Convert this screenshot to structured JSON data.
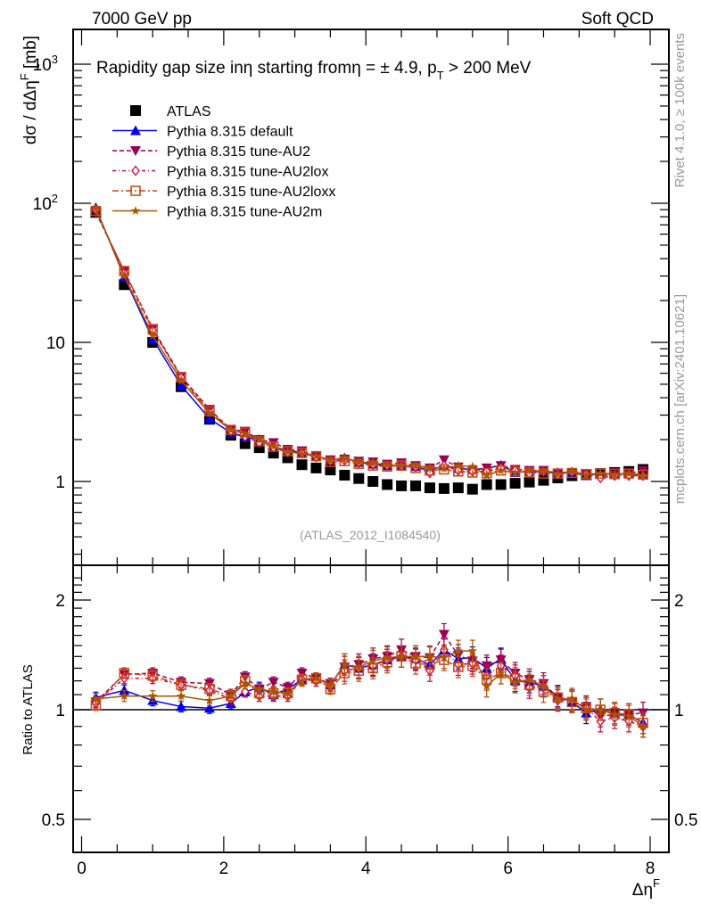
{
  "header": {
    "left_label": "7000 GeV pp",
    "right_label": "Soft QCD"
  },
  "side_labels": {
    "rivet": "Rivet 4.1.0, ≥ 100k events",
    "source": "mcplots.cern.ch [arXiv:2401.10621]"
  },
  "chart_data": [
    {
      "type": "line",
      "panel": "main",
      "title": "Rapidity gap size inη starting fromη = ± 4.9, p_T > 200 MeV",
      "title_parts": {
        "main": "Rapidity gap size inη starting fromη = ± 4.9, p",
        "sub": "T",
        "tail": " > 200 MeV"
      },
      "xlabel": "Δη^F",
      "ylabel": "dσ / dΔη^F [mb]",
      "ylabel_parts": {
        "pre": "dσ / dΔη",
        "sup": "F",
        "post": " [mb]"
      },
      "xlim": [
        -0.15,
        8.25
      ],
      "ylim": [
        0.27,
        1700
      ],
      "yscale": "log",
      "ytick_labels": [
        {
          "value": 1000,
          "base": "10",
          "exp": "3"
        },
        {
          "value": 100,
          "base": "10",
          "exp": "2"
        },
        {
          "value": 10,
          "base": "10",
          "exp": ""
        },
        {
          "value": 1,
          "base": "1",
          "exp": ""
        }
      ],
      "xtick_labels": [
        "0",
        "2",
        "4",
        "6",
        "8"
      ],
      "legend_position": "top-left",
      "watermark": "(ATLAS_2012_I1084540)",
      "x": [
        0.2,
        0.6,
        1.0,
        1.4,
        1.8,
        2.1,
        2.3,
        2.5,
        2.7,
        2.9,
        3.1,
        3.3,
        3.5,
        3.7,
        3.9,
        4.1,
        4.3,
        4.5,
        4.7,
        4.9,
        5.1,
        5.3,
        5.5,
        5.7,
        5.9,
        6.1,
        6.3,
        6.5,
        6.7,
        6.9,
        7.1,
        7.3,
        7.5,
        7.7,
        7.9
      ],
      "series": [
        {
          "name": "ATLAS",
          "color": "#000000",
          "marker": "square",
          "line": "none",
          "values": [
            86,
            26,
            10,
            4.8,
            2.8,
            2.15,
            1.87,
            1.75,
            1.6,
            1.48,
            1.32,
            1.25,
            1.21,
            1.11,
            1.05,
            1.0,
            0.95,
            0.93,
            0.93,
            0.9,
            0.89,
            0.9,
            0.88,
            0.95,
            0.95,
            0.97,
            0.99,
            1.02,
            1.06,
            1.1,
            1.12,
            1.14,
            1.16,
            1.18,
            1.22
          ]
        },
        {
          "name": "Pythia 8.315 default",
          "color": "#0000ee",
          "marker": "triangle-up",
          "line": "solid",
          "values": [
            93,
            29.5,
            10.6,
            4.9,
            2.83,
            2.24,
            2.09,
            2.01,
            1.76,
            1.69,
            1.6,
            1.53,
            1.42,
            1.48,
            1.37,
            1.33,
            1.3,
            1.3,
            1.28,
            1.2,
            1.3,
            1.24,
            1.22,
            1.24,
            1.31,
            1.16,
            1.18,
            1.18,
            1.16,
            1.16,
            1.1,
            1.14,
            1.12,
            1.14,
            1.12
          ]
        },
        {
          "name": "Pythia 8.315 tune-AU2",
          "color": "#990055",
          "marker": "triangle-down",
          "line": "dashed",
          "values": [
            86,
            32.5,
            12.6,
            5.7,
            3.3,
            2.37,
            2.3,
            2.0,
            1.9,
            1.7,
            1.66,
            1.52,
            1.43,
            1.45,
            1.4,
            1.38,
            1.33,
            1.36,
            1.3,
            1.25,
            1.43,
            1.27,
            1.2,
            1.25,
            1.3,
            1.22,
            1.2,
            1.2,
            1.14,
            1.15,
            1.14,
            1.1,
            1.12,
            1.14,
            1.2
          ]
        },
        {
          "name": "Pythia 8.315 tune-AU2lox",
          "color": "#cc0044",
          "marker": "diamond-open",
          "line": "dashdot",
          "values": [
            90,
            31.5,
            12.2,
            5.6,
            3.15,
            2.3,
            2.1,
            1.9,
            1.75,
            1.62,
            1.6,
            1.5,
            1.4,
            1.42,
            1.36,
            1.32,
            1.3,
            1.3,
            1.27,
            1.15,
            1.3,
            1.2,
            1.18,
            1.18,
            1.25,
            1.2,
            1.14,
            1.18,
            1.12,
            1.17,
            1.13,
            1.06,
            1.1,
            1.1,
            1.1
          ]
        },
        {
          "name": "Pythia 8.315 tune-AU2loxx",
          "color": "#cc4411",
          "marker": "square-open",
          "line": "dashdotted-long",
          "values": [
            88,
            32.6,
            12.4,
            5.6,
            3.2,
            2.35,
            2.25,
            1.95,
            1.78,
            1.65,
            1.6,
            1.52,
            1.38,
            1.4,
            1.34,
            1.3,
            1.28,
            1.3,
            1.25,
            1.2,
            1.22,
            1.18,
            1.16,
            1.15,
            1.2,
            1.18,
            1.16,
            1.14,
            1.14,
            1.15,
            1.13,
            1.14,
            1.14,
            1.14,
            1.12
          ]
        },
        {
          "name": "Pythia 8.315 tune-AU2m",
          "color": "#aa5500",
          "marker": "star",
          "line": "solid",
          "values": [
            92,
            30,
            11.2,
            5.3,
            3.1,
            2.35,
            2.2,
            2.0,
            1.8,
            1.64,
            1.58,
            1.52,
            1.42,
            1.48,
            1.38,
            1.36,
            1.32,
            1.3,
            1.3,
            1.26,
            1.24,
            1.3,
            1.28,
            1.1,
            1.2,
            1.15,
            1.2,
            1.18,
            1.13,
            1.18,
            1.12,
            1.14,
            1.12,
            1.14,
            1.1
          ]
        }
      ]
    },
    {
      "type": "line",
      "panel": "ratio",
      "ylabel": "Ratio to ATLAS",
      "xlabel": "Δη^F",
      "yscale": "log",
      "ylim": [
        0.42,
        2.35
      ],
      "xlim": [
        -0.15,
        8.25
      ],
      "ytick_labels": [
        "2",
        "1",
        "0.5"
      ],
      "xtick_labels": [
        "0",
        "2",
        "4",
        "6",
        "8"
      ],
      "reference_line": 1,
      "x": [
        0.2,
        0.6,
        1.0,
        1.4,
        1.8,
        2.1,
        2.3,
        2.5,
        2.7,
        2.9,
        3.1,
        3.3,
        3.5,
        3.7,
        3.9,
        4.1,
        4.3,
        4.5,
        4.7,
        4.9,
        5.1,
        5.3,
        5.5,
        5.7,
        5.9,
        6.1,
        6.3,
        6.5,
        6.7,
        6.9,
        7.1,
        7.3,
        7.5,
        7.7,
        7.9
      ],
      "series": [
        {
          "name": "Pythia 8.315 default",
          "color": "#0000ee",
          "marker": "triangle-up",
          "line": "solid",
          "values": [
            1.08,
            1.13,
            1.06,
            1.02,
            1.01,
            1.04,
            1.12,
            1.15,
            1.1,
            1.14,
            1.21,
            1.22,
            1.17,
            1.33,
            1.3,
            1.33,
            1.37,
            1.4,
            1.38,
            1.33,
            1.46,
            1.38,
            1.39,
            1.3,
            1.38,
            1.2,
            1.19,
            1.16,
            1.09,
            1.05,
            0.98,
            1.0,
            0.97,
            0.97,
            0.92
          ]
        },
        {
          "name": "Pythia 8.315 tune-AU2",
          "color": "#990055",
          "marker": "triangle-down",
          "line": "dashed",
          "values": [
            1.05,
            1.25,
            1.26,
            1.19,
            1.18,
            1.1,
            1.23,
            1.14,
            1.19,
            1.15,
            1.26,
            1.22,
            1.18,
            1.31,
            1.33,
            1.38,
            1.4,
            1.46,
            1.4,
            1.39,
            1.61,
            1.41,
            1.36,
            1.32,
            1.37,
            1.26,
            1.21,
            1.18,
            1.08,
            1.05,
            1.02,
            0.96,
            0.97,
            0.97,
            0.98
          ]
        },
        {
          "name": "Pythia 8.315 tune-AU2lox",
          "color": "#cc0044",
          "marker": "diamond-open",
          "line": "dashdot",
          "values": [
            1.04,
            1.22,
            1.22,
            1.17,
            1.13,
            1.07,
            1.12,
            1.09,
            1.09,
            1.09,
            1.21,
            1.2,
            1.16,
            1.28,
            1.3,
            1.32,
            1.37,
            1.4,
            1.37,
            1.28,
            1.46,
            1.33,
            1.34,
            1.24,
            1.32,
            1.24,
            1.15,
            1.16,
            1.06,
            1.06,
            1.01,
            0.93,
            0.95,
            0.93,
            0.9
          ]
        },
        {
          "name": "Pythia 8.315 tune-AU2loxx",
          "color": "#cc4411",
          "marker": "square-open",
          "line": "dashdotted-long",
          "values": [
            1.03,
            1.26,
            1.24,
            1.17,
            1.14,
            1.09,
            1.2,
            1.11,
            1.11,
            1.11,
            1.21,
            1.22,
            1.14,
            1.26,
            1.28,
            1.3,
            1.35,
            1.4,
            1.34,
            1.33,
            1.37,
            1.31,
            1.32,
            1.21,
            1.26,
            1.22,
            1.17,
            1.12,
            1.08,
            1.05,
            1.01,
            1.0,
            0.98,
            0.97,
            0.92
          ]
        },
        {
          "name": "Pythia 8.315 tune-AU2m",
          "color": "#aa5500",
          "marker": "star",
          "line": "solid",
          "values": [
            1.07,
            1.09,
            1.09,
            1.09,
            1.06,
            1.09,
            1.18,
            1.14,
            1.12,
            1.11,
            1.2,
            1.22,
            1.17,
            1.33,
            1.31,
            1.36,
            1.39,
            1.4,
            1.4,
            1.4,
            1.39,
            1.45,
            1.45,
            1.16,
            1.26,
            1.19,
            1.21,
            1.16,
            1.07,
            1.07,
            1.0,
            1.0,
            0.97,
            0.96,
            0.9
          ]
        }
      ]
    }
  ]
}
